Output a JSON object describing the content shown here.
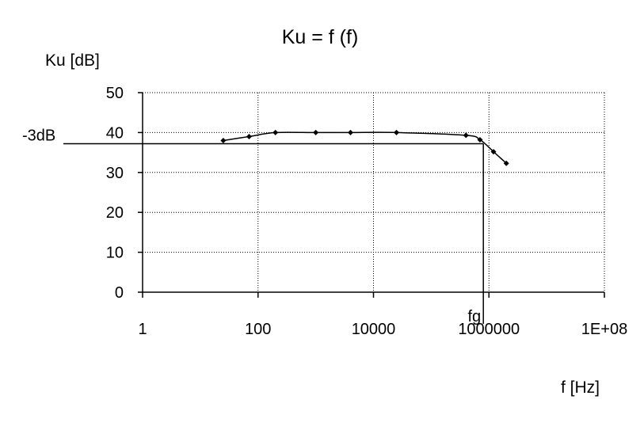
{
  "chart_data": {
    "type": "scatter",
    "title": "Ku = f (f)",
    "ylabel": "Ku [dB]",
    "xlabel": "f [Hz]",
    "x_scale": "log",
    "xlim": [
      1,
      100000000
    ],
    "ylim": [
      0,
      50
    ],
    "x_ticks": [
      1,
      100,
      10000,
      1000000,
      100000000
    ],
    "x_tick_labels": [
      "1",
      "100",
      "10000",
      "1000000",
      "1E+08"
    ],
    "y_ticks": [
      0,
      10,
      20,
      30,
      40,
      50
    ],
    "y_tick_labels": [
      "0",
      "10",
      "20",
      "30",
      "40",
      "50"
    ],
    "grid": true,
    "series": [
      {
        "x": [
          25,
          70,
          200,
          1000,
          4000,
          25000,
          400000,
          700000,
          1200000,
          2000000
        ],
        "y": [
          38,
          39,
          40,
          40,
          40,
          40,
          39.3,
          38.2,
          35.2,
          32.3
        ]
      }
    ],
    "annotations": {
      "minus3db": {
        "label": "-3dB",
        "y": 37.2
      },
      "fg": {
        "label": "fg",
        "x": 800000
      }
    },
    "colors": {
      "line": "#000000",
      "grid": "#000000",
      "background": "#ffffff"
    }
  }
}
